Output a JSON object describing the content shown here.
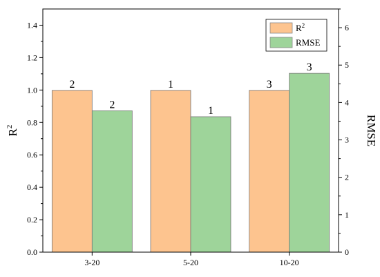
{
  "chart_data": {
    "type": "bar",
    "categories": [
      "3-20",
      "5-20",
      "10-20"
    ],
    "series": [
      {
        "name": "R",
        "name_sup": "2",
        "axis": "left",
        "color": "#FDC48F",
        "values": [
          0.998,
          0.998,
          0.998
        ],
        "labels": [
          "2",
          "1",
          "3"
        ]
      },
      {
        "name": "RMSE",
        "axis": "right",
        "color": "#9ED49A",
        "values": [
          3.78,
          3.62,
          4.78
        ],
        "labels": [
          "2",
          "1",
          "3"
        ]
      }
    ],
    "y_left": {
      "label": "R",
      "label_sup": "2",
      "lim": [
        0,
        1.5
      ],
      "ticks": [
        "0.0",
        "0.2",
        "0.4",
        "0.6",
        "0.8",
        "1.0",
        "1.2",
        "1.4"
      ]
    },
    "y_right": {
      "label": "RMSE",
      "lim": [
        0,
        6.5
      ],
      "ticks": [
        "0",
        "1",
        "2",
        "3",
        "4",
        "5",
        "6"
      ]
    },
    "xlabel": "",
    "title": "",
    "grid": false,
    "legend": "top-right"
  }
}
